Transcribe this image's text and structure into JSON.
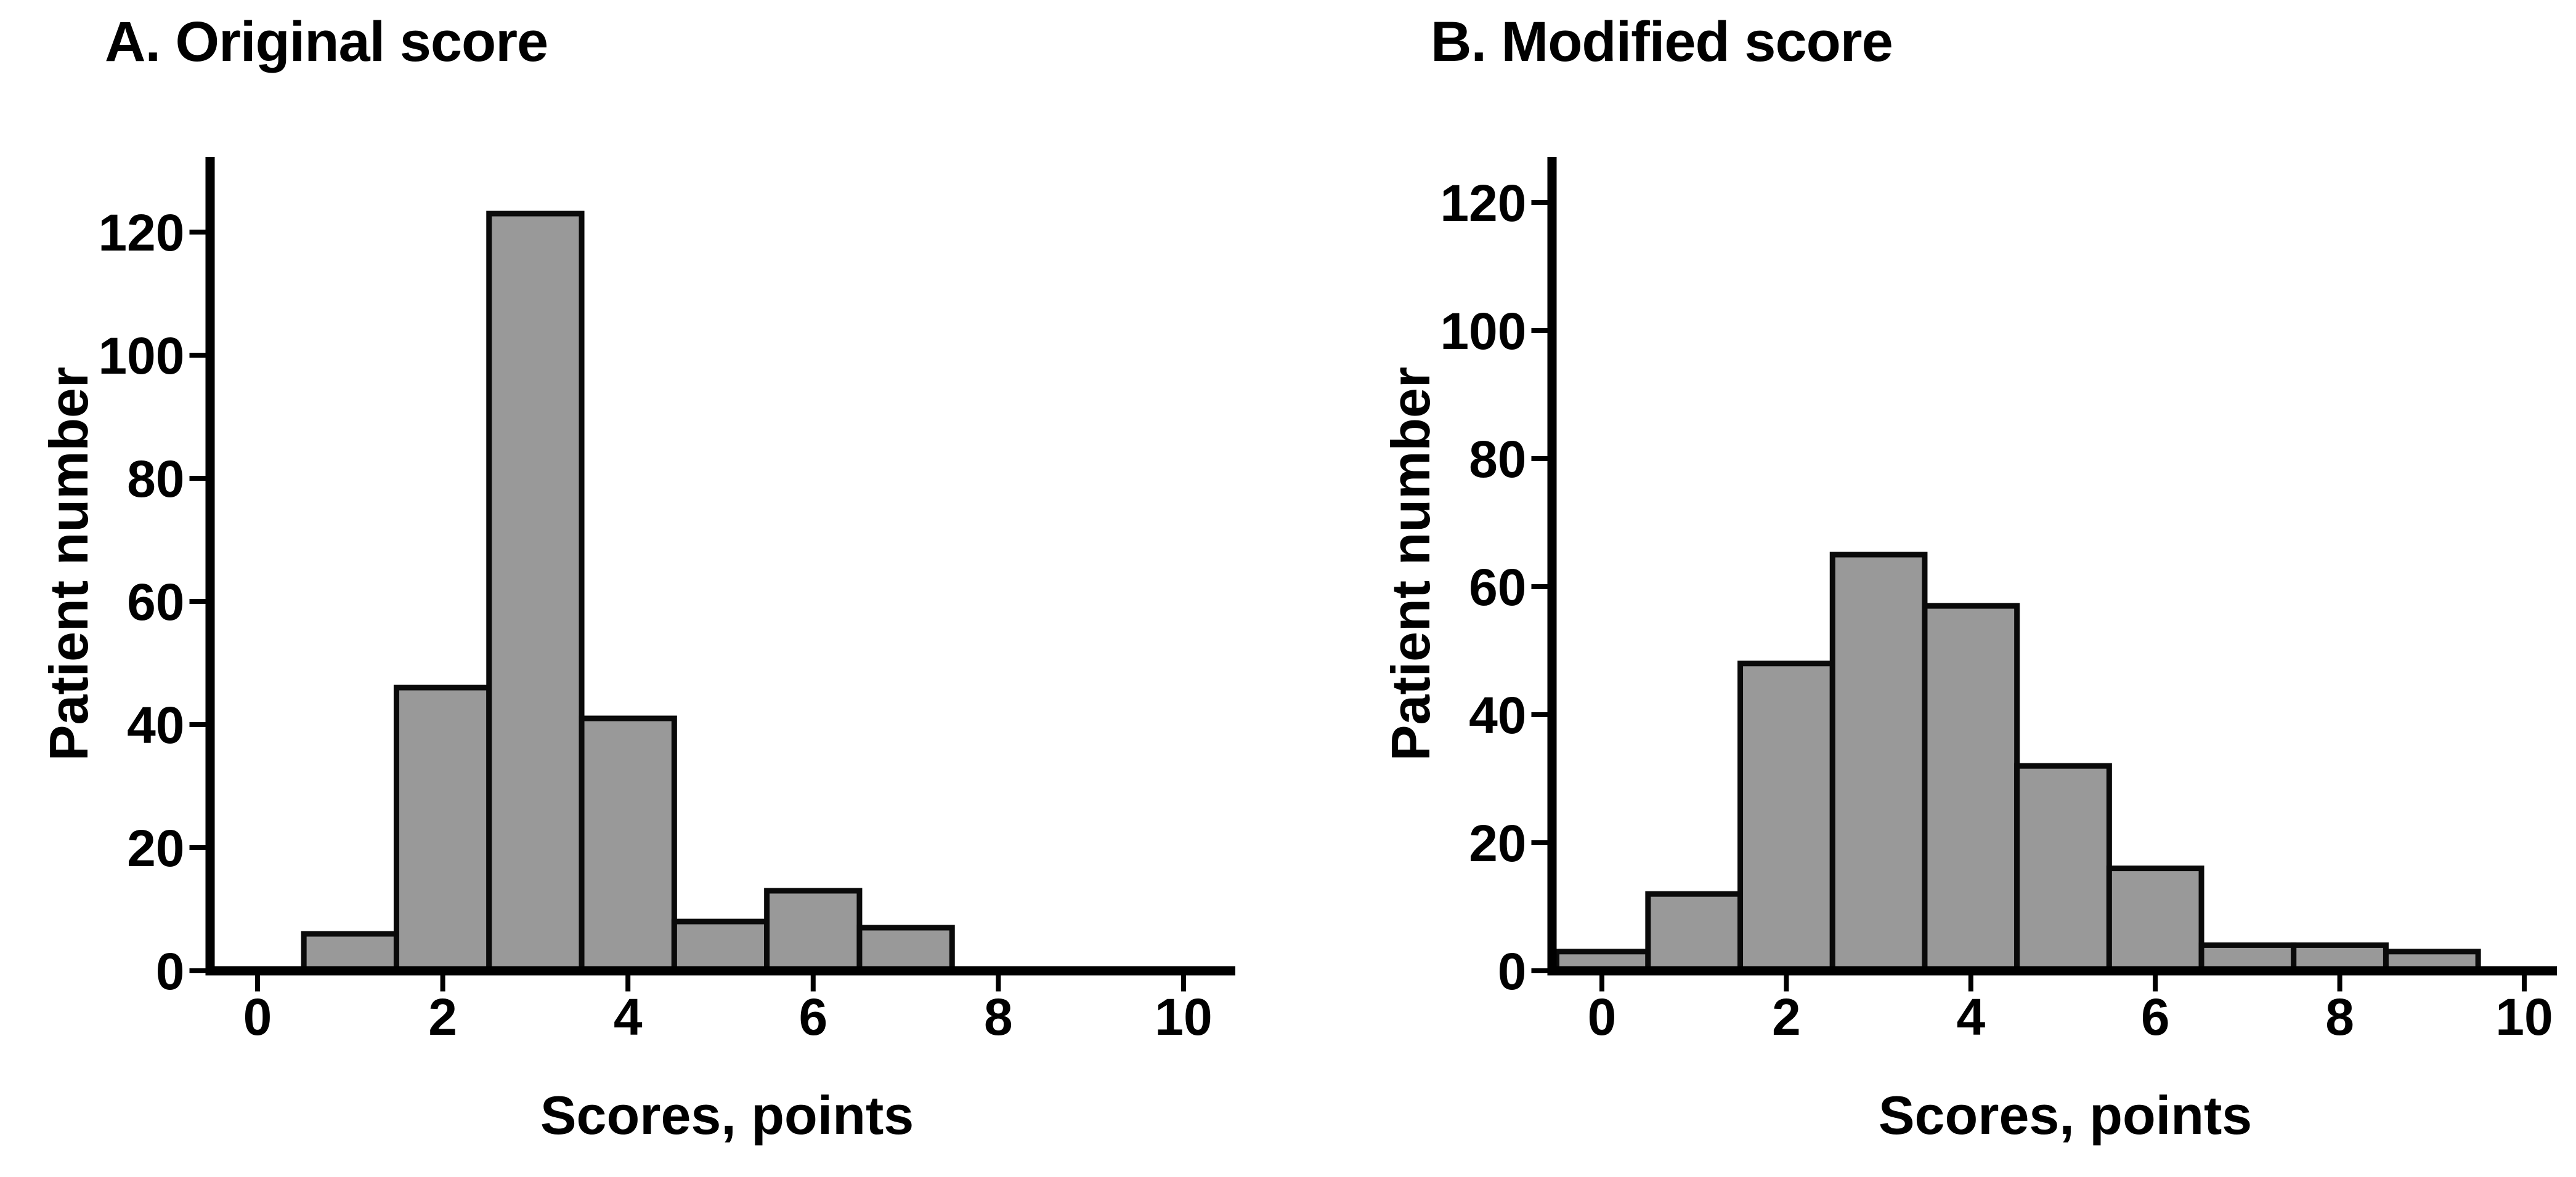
{
  "page": {
    "background_color": "#ffffff",
    "text_color": "#000000"
  },
  "chart_data": [
    {
      "type": "bar",
      "subtype": "histogram",
      "title": "A. Original score",
      "xlabel": "Scores, points",
      "ylabel": "Patient number",
      "bin_centers": [
        1,
        2,
        3,
        4,
        5,
        6,
        7
      ],
      "values": [
        6,
        46,
        123,
        41,
        8,
        13,
        7
      ],
      "bin_width": 1,
      "xticks": [
        0,
        2,
        4,
        6,
        8,
        10
      ],
      "yticks": [
        0,
        20,
        40,
        60,
        80,
        100,
        120
      ],
      "xlim": [
        -0.55,
        10.55
      ],
      "ylim": [
        0,
        132
      ],
      "grid": false,
      "legend": null,
      "bar_fill_color": "#999999",
      "bar_edge_color": "#0a0a0a",
      "axis_color": "#000000",
      "first_bin_clipped_at_axis": false
    },
    {
      "type": "bar",
      "subtype": "histogram",
      "title": "B. Modified score",
      "xlabel": "Scores, points",
      "ylabel": "Patient number",
      "bin_centers": [
        0,
        1,
        2,
        3,
        4,
        5,
        6,
        7,
        8,
        9
      ],
      "values": [
        3,
        12,
        48,
        65,
        57,
        32,
        16,
        4,
        4,
        3
      ],
      "bin_width": 1,
      "xticks": [
        0,
        2,
        4,
        6,
        8,
        10
      ],
      "yticks": [
        0,
        20,
        40,
        60,
        80,
        100,
        120
      ],
      "xlim": [
        -0.55,
        10.35
      ],
      "ylim": [
        0,
        127
      ],
      "grid": false,
      "legend": null,
      "bar_fill_color": "#999999",
      "bar_edge_color": "#0a0a0a",
      "axis_color": "#000000",
      "first_bin_clipped_at_axis": true
    }
  ]
}
